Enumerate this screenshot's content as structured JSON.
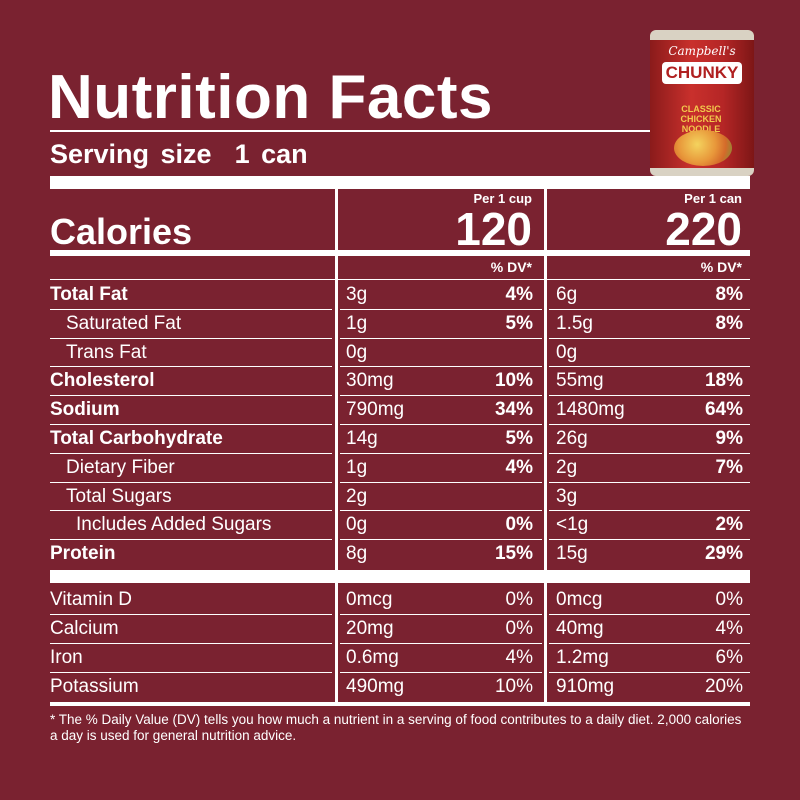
{
  "header": {
    "title": "Nutrition Facts",
    "serving_size": "Serving size  1 can"
  },
  "calories": {
    "label": "Calories",
    "per_cup_label": "Per 1 cup",
    "per_can_label": "Per 1 can",
    "per_cup_value": "120",
    "per_can_value": "220",
    "dv_label": "% DV*"
  },
  "nutrients": [
    {
      "name": "Total Fat",
      "cup_amt": "3g",
      "cup_dv": "4%",
      "can_amt": "6g",
      "can_dv": "8%"
    },
    {
      "name": "Saturated Fat",
      "cup_amt": "1g",
      "cup_dv": "5%",
      "can_amt": "1.5g",
      "can_dv": "8%"
    },
    {
      "name": "Trans Fat",
      "cup_amt": "0g",
      "cup_dv": "",
      "can_amt": "0g",
      "can_dv": ""
    },
    {
      "name": "Cholesterol",
      "cup_amt": "30mg",
      "cup_dv": "10%",
      "can_amt": "55mg",
      "can_dv": "18%"
    },
    {
      "name": "Sodium",
      "cup_amt": "790mg",
      "cup_dv": "34%",
      "can_amt": "1480mg",
      "can_dv": "64%"
    },
    {
      "name": "Total Carbohydrate",
      "cup_amt": "14g",
      "cup_dv": "5%",
      "can_amt": "26g",
      "can_dv": "9%"
    },
    {
      "name": "Dietary Fiber",
      "cup_amt": "1g",
      "cup_dv": "4%",
      "can_amt": "2g",
      "can_dv": "7%"
    },
    {
      "name": "Total Sugars",
      "cup_amt": "2g",
      "cup_dv": "",
      "can_amt": "3g",
      "can_dv": ""
    },
    {
      "name": "Includes Added Sugars",
      "cup_amt": "0g",
      "cup_dv": "0%",
      "can_amt": "<1g",
      "can_dv": "2%"
    },
    {
      "name": "Protein",
      "cup_amt": "8g",
      "cup_dv": "15%",
      "can_amt": "15g",
      "can_dv": "29%"
    }
  ],
  "vitamins": [
    {
      "name": "Vitamin D",
      "cup_amt": "0mcg",
      "cup_dv": "0%",
      "can_amt": "0mcg",
      "can_dv": "0%"
    },
    {
      "name": "Calcium",
      "cup_amt": "20mg",
      "cup_dv": "0%",
      "can_amt": "40mg",
      "can_dv": "4%"
    },
    {
      "name": "Iron",
      "cup_amt": "0.6mg",
      "cup_dv": "4%",
      "can_amt": "1.2mg",
      "can_dv": "6%"
    },
    {
      "name": "Potassium",
      "cup_amt": "490mg",
      "cup_dv": "10%",
      "can_amt": "910mg",
      "can_dv": "20%"
    }
  ],
  "footnote": "* The % Daily Value (DV) tells you how much a nutrient in a serving of food contributes to a daily diet. 2,000 calories a day is used for general nutrition advice.",
  "product_image": {
    "brand": "Campbell's",
    "name": "CHUNKY",
    "variety": "CLASSIC CHICKEN NOODLE"
  },
  "colors": {
    "background": "#7a2230",
    "text": "#ffffff"
  }
}
